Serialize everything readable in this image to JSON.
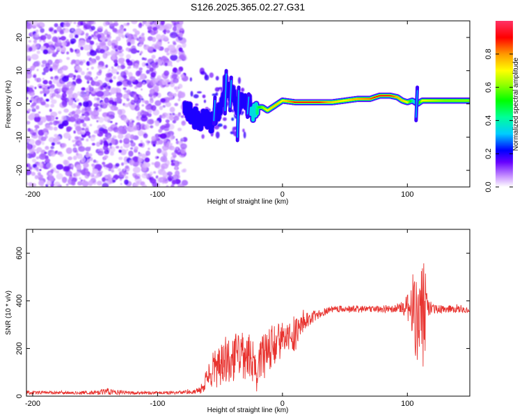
{
  "title": "S126.2025.365.02.27.G31",
  "chart_data": [
    {
      "type": "heatmap",
      "name": "spectrogram",
      "xlabel": "Height of straight line (km)",
      "ylabel": "Frequency (Hz)",
      "xlim": [
        -205,
        150
      ],
      "ylim": [
        -25,
        25
      ],
      "xticks": [
        -200,
        -100,
        0,
        100
      ],
      "yticks": [
        -20,
        -10,
        0,
        10,
        20
      ],
      "noise_region_x": [
        -205,
        -78
      ],
      "ridge": {
        "x": [
          -78,
          -72,
          -66,
          -60,
          -55,
          -50,
          -45,
          -40,
          -36,
          -32,
          -28,
          -24,
          -20,
          -16,
          -12,
          -8,
          -4,
          0,
          10,
          20,
          30,
          40,
          50,
          60,
          70,
          78,
          86,
          92,
          96,
          100,
          104,
          108,
          112,
          120,
          130,
          140,
          150
        ],
        "y": [
          -2,
          -4,
          -5,
          -4,
          -5,
          -2,
          4,
          3,
          -1,
          2,
          -1,
          -2,
          -1,
          -1,
          -2,
          -1,
          0,
          1,
          0.5,
          0.5,
          0.5,
          0.5,
          1,
          1.5,
          1.5,
          2.5,
          2.5,
          2,
          1,
          0.5,
          1,
          0,
          1,
          1,
          1,
          1,
          1
        ],
        "amplitude": [
          0.25,
          0.3,
          0.3,
          0.28,
          0.3,
          0.25,
          0.25,
          0.22,
          0.25,
          0.3,
          0.3,
          0.35,
          0.45,
          0.6,
          0.7,
          0.75,
          0.75,
          0.7,
          0.9,
          0.95,
          0.9,
          0.75,
          0.7,
          0.8,
          0.85,
          0.95,
          0.9,
          0.8,
          0.75,
          0.7,
          0.4,
          0.35,
          0.7,
          0.65,
          0.6,
          0.6,
          0.6
        ]
      },
      "colorbar": {
        "label": "Normalized spectral amplitude",
        "range": [
          0,
          1
        ],
        "ticks": [
          0.0,
          0.2,
          0.4,
          0.6,
          0.8
        ]
      }
    },
    {
      "type": "line",
      "name": "snr",
      "xlabel": "Height of straight line (km)",
      "ylabel": "SNR (10 * v/v)",
      "xlim": [
        -205,
        150
      ],
      "ylim": [
        0,
        700
      ],
      "xticks": [
        -200,
        -100,
        0,
        100
      ],
      "yticks": [
        0,
        200,
        400,
        600
      ],
      "color": "#e8322e",
      "series": [
        {
          "name": "SNR",
          "x": [
            -205,
            -190,
            -170,
            -150,
            -140,
            -120,
            -100,
            -80,
            -70,
            -64,
            -60,
            -56,
            -50,
            -45,
            -40,
            -35,
            -30,
            -25,
            -22,
            -20,
            -18,
            -15,
            -10,
            -5,
            0,
            5,
            8,
            10,
            12,
            15,
            20,
            25,
            30,
            35,
            40,
            50,
            60,
            70,
            80,
            90,
            95,
            100,
            103,
            106,
            109,
            112,
            114,
            116,
            120,
            130,
            140,
            150
          ],
          "mean": [
            15,
            15,
            14,
            15,
            18,
            14,
            14,
            15,
            20,
            30,
            80,
            110,
            130,
            140,
            160,
            170,
            175,
            165,
            120,
            70,
            160,
            170,
            200,
            220,
            230,
            240,
            250,
            270,
            280,
            300,
            320,
            335,
            345,
            355,
            365,
            365,
            365,
            365,
            365,
            370,
            370,
            375,
            370,
            360,
            340,
            330,
            350,
            370,
            365,
            365,
            365,
            360
          ],
          "amplitude": [
            8,
            6,
            6,
            8,
            14,
            6,
            6,
            8,
            10,
            20,
            40,
            80,
            90,
            100,
            100,
            100,
            110,
            100,
            80,
            60,
            90,
            100,
            100,
            90,
            80,
            70,
            70,
            90,
            60,
            40,
            30,
            25,
            20,
            18,
            15,
            15,
            15,
            15,
            15,
            18,
            25,
            60,
            120,
            180,
            220,
            250,
            200,
            40,
            20,
            15,
            15,
            15
          ]
        }
      ]
    }
  ]
}
